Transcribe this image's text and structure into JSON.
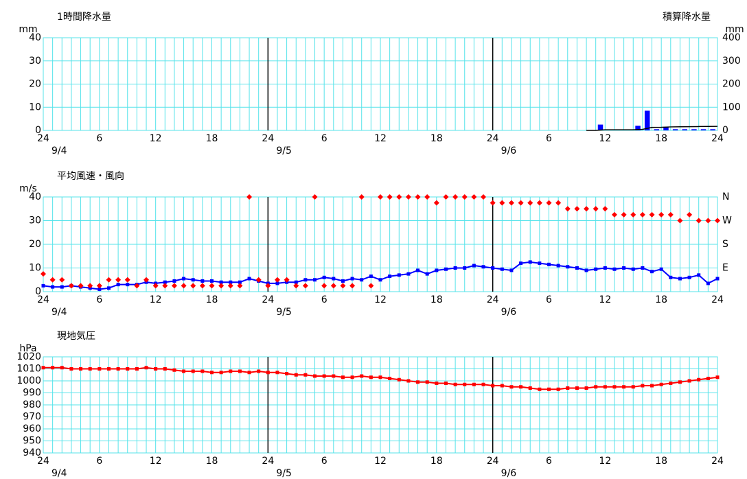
{
  "chart_data": [
    {
      "type": "bar",
      "title": "1時間降水量",
      "y_unit": "mm",
      "y2_title": "積算降水量",
      "y2_unit": "mm",
      "xlim": [
        0,
        72
      ],
      "ylim": [
        0,
        40
      ],
      "yticks": [
        0,
        10,
        20,
        30,
        40
      ],
      "y2lim": [
        0,
        400
      ],
      "y2ticks": [
        0,
        100,
        200,
        300,
        400
      ],
      "xticks": [
        {
          "value": 0,
          "label": "24"
        },
        {
          "value": 6,
          "label": "6"
        },
        {
          "value": 12,
          "label": "12"
        },
        {
          "value": 18,
          "label": "18"
        },
        {
          "value": 24,
          "label": "24"
        },
        {
          "value": 30,
          "label": "6"
        },
        {
          "value": 36,
          "label": "12"
        },
        {
          "value": 42,
          "label": "18"
        },
        {
          "value": 48,
          "label": "24"
        },
        {
          "value": 54,
          "label": "6"
        },
        {
          "value": 60,
          "label": "12"
        },
        {
          "value": 66,
          "label": "18"
        },
        {
          "value": 72,
          "label": "24"
        }
      ],
      "date_labels": [
        {
          "value": 0,
          "label": "9/4"
        },
        {
          "value": 24,
          "label": "9/5"
        },
        {
          "value": 48,
          "label": "9/6"
        }
      ],
      "grid_color": "#55e3ea",
      "day_line_color": "#000000",
      "series": [
        {
          "name": "1時間降水量",
          "color": "#0000ff",
          "x": [
            58,
            59,
            60,
            61,
            62,
            63,
            64,
            65,
            66,
            67,
            68,
            69,
            70,
            71,
            72
          ],
          "values": [
            0,
            0,
            2.5,
            0,
            0,
            0,
            2,
            8.5,
            0.5,
            1.5,
            0.5,
            0.5,
            0.5,
            0.5,
            0.5
          ]
        },
        {
          "name": "積算降水量",
          "color": "#000000",
          "axis": "y2",
          "x": [
            58,
            59,
            60,
            61,
            62,
            63,
            64,
            65,
            66,
            67,
            68,
            69,
            70,
            71,
            72
          ],
          "values": [
            0,
            0,
            2.5,
            2.5,
            2.5,
            2.5,
            4.5,
            13,
            13.5,
            15,
            15.5,
            16,
            16.5,
            17,
            17.5
          ]
        }
      ]
    },
    {
      "type": "line",
      "title": "平均風速・風向",
      "y_unit": "m/s",
      "xlim": [
        0,
        72
      ],
      "ylim": [
        0,
        40
      ],
      "yticks": [
        0,
        10,
        20,
        30,
        40
      ],
      "y2lim": [
        0,
        360
      ],
      "y2ticks": [
        {
          "value": 90,
          "label": "E"
        },
        {
          "value": 180,
          "label": "S"
        },
        {
          "value": 270,
          "label": "W"
        },
        {
          "value": 360,
          "label": "N"
        }
      ],
      "y2_color": "#ff0000",
      "xticks": [
        {
          "value": 0,
          "label": "24"
        },
        {
          "value": 6,
          "label": "6"
        },
        {
          "value": 12,
          "label": "12"
        },
        {
          "value": 18,
          "label": "18"
        },
        {
          "value": 24,
          "label": "24"
        },
        {
          "value": 30,
          "label": "6"
        },
        {
          "value": 36,
          "label": "12"
        },
        {
          "value": 42,
          "label": "18"
        },
        {
          "value": 48,
          "label": "24"
        },
        {
          "value": 54,
          "label": "6"
        },
        {
          "value": 60,
          "label": "12"
        },
        {
          "value": 66,
          "label": "18"
        },
        {
          "value": 72,
          "label": "24"
        }
      ],
      "date_labels": [
        {
          "value": 0,
          "label": "9/4"
        },
        {
          "value": 24,
          "label": "9/5"
        },
        {
          "value": 48,
          "label": "9/6"
        }
      ],
      "grid_color": "#55e3ea",
      "day_line_color": "#000000",
      "x": [
        0,
        1,
        2,
        3,
        4,
        5,
        6,
        7,
        8,
        9,
        10,
        11,
        12,
        13,
        14,
        15,
        16,
        17,
        18,
        19,
        20,
        21,
        22,
        23,
        24,
        25,
        26,
        27,
        28,
        29,
        30,
        31,
        32,
        33,
        34,
        35,
        36,
        37,
        38,
        39,
        40,
        41,
        42,
        43,
        44,
        45,
        46,
        47,
        48,
        49,
        50,
        51,
        52,
        53,
        54,
        55,
        56,
        57,
        58,
        59,
        60,
        61,
        62,
        63,
        64,
        65,
        66,
        67,
        68,
        69,
        70,
        71,
        72
      ],
      "series": [
        {
          "name": "平均風速",
          "color": "#0000ff",
          "line": true,
          "marker": "square",
          "values": [
            2.5,
            2,
            2,
            2.5,
            2,
            1.5,
            1,
            1.5,
            3,
            3,
            3,
            4,
            3.5,
            4,
            4.5,
            5.5,
            5,
            4.5,
            4.5,
            4,
            4,
            4,
            5.5,
            4.5,
            3.5,
            3.5,
            4,
            4,
            5,
            5,
            6,
            5.5,
            4.5,
            5.5,
            5,
            6.5,
            5,
            6.5,
            7,
            7.5,
            9,
            7.5,
            9,
            9.5,
            10,
            10,
            11,
            10.5,
            10,
            9.5,
            9,
            12,
            12.5,
            12,
            11.5,
            11,
            10.5,
            10,
            9,
            9.5,
            10,
            9.5,
            10,
            9.5,
            10,
            8.5,
            9.5,
            6,
            5.5,
            6,
            7,
            3.5,
            5.5
          ]
        },
        {
          "name": "風向",
          "color": "#ff0000",
          "axis": "y2",
          "line": false,
          "marker": "diamond",
          "values": [
            67.5,
            45,
            45,
            22.5,
            22.5,
            22.5,
            22.5,
            45,
            45,
            45,
            22.5,
            45,
            22.5,
            22.5,
            22.5,
            22.5,
            22.5,
            22.5,
            22.5,
            22.5,
            22.5,
            22.5,
            360,
            45,
            22.5,
            45,
            45,
            22.5,
            22.5,
            360,
            22.5,
            22.5,
            22.5,
            22.5,
            360,
            22.5,
            360,
            360,
            360,
            360,
            360,
            360,
            337.5,
            360,
            360,
            360,
            360,
            360,
            337.5,
            337.5,
            337.5,
            337.5,
            337.5,
            337.5,
            337.5,
            337.5,
            315,
            315,
            315,
            315,
            315,
            292.5,
            292.5,
            292.5,
            292.5,
            292.5,
            292.5,
            292.5,
            270,
            292.5,
            270,
            270,
            270
          ]
        }
      ]
    },
    {
      "type": "line",
      "title": "現地気圧",
      "y_unit": "hPa",
      "xlim": [
        0,
        72
      ],
      "ylim": [
        940,
        1020
      ],
      "yticks": [
        940,
        950,
        960,
        970,
        980,
        990,
        1000,
        1010,
        1020
      ],
      "xticks": [
        {
          "value": 0,
          "label": "24"
        },
        {
          "value": 6,
          "label": "6"
        },
        {
          "value": 12,
          "label": "12"
        },
        {
          "value": 18,
          "label": "18"
        },
        {
          "value": 24,
          "label": "24"
        },
        {
          "value": 30,
          "label": "6"
        },
        {
          "value": 36,
          "label": "12"
        },
        {
          "value": 42,
          "label": "18"
        },
        {
          "value": 48,
          "label": "24"
        },
        {
          "value": 54,
          "label": "6"
        },
        {
          "value": 60,
          "label": "12"
        },
        {
          "value": 66,
          "label": "18"
        },
        {
          "value": 72,
          "label": "24"
        }
      ],
      "date_labels": [
        {
          "value": 0,
          "label": "9/4"
        },
        {
          "value": 24,
          "label": "9/5"
        },
        {
          "value": 48,
          "label": "9/6"
        }
      ],
      "grid_color": "#55e3ea",
      "day_line_color": "#000000",
      "x": [
        0,
        1,
        2,
        3,
        4,
        5,
        6,
        7,
        8,
        9,
        10,
        11,
        12,
        13,
        14,
        15,
        16,
        17,
        18,
        19,
        20,
        21,
        22,
        23,
        24,
        25,
        26,
        27,
        28,
        29,
        30,
        31,
        32,
        33,
        34,
        35,
        36,
        37,
        38,
        39,
        40,
        41,
        42,
        43,
        44,
        45,
        46,
        47,
        48,
        49,
        50,
        51,
        52,
        53,
        54,
        55,
        56,
        57,
        58,
        59,
        60,
        61,
        62,
        63,
        64,
        65,
        66,
        67,
        68,
        69,
        70,
        71,
        72
      ],
      "series": [
        {
          "name": "現地気圧",
          "color": "#ff0000",
          "line": true,
          "marker": "square",
          "values": [
            1011,
            1011,
            1011,
            1010,
            1010,
            1010,
            1010,
            1010,
            1010,
            1010,
            1010,
            1011,
            1010,
            1010,
            1009,
            1008,
            1008,
            1008,
            1007,
            1007,
            1008,
            1008,
            1007,
            1008,
            1007,
            1007,
            1006,
            1005,
            1005,
            1004,
            1004,
            1004,
            1003,
            1003,
            1004,
            1003,
            1003,
            1002,
            1001,
            1000,
            999,
            999,
            998,
            998,
            997,
            997,
            997,
            997,
            996,
            996,
            995,
            995,
            994,
            993,
            993,
            993,
            994,
            994,
            994,
            995,
            995,
            995,
            995,
            995,
            996,
            996,
            997,
            998,
            999,
            1000,
            1001,
            1002,
            1003
          ]
        }
      ]
    }
  ]
}
